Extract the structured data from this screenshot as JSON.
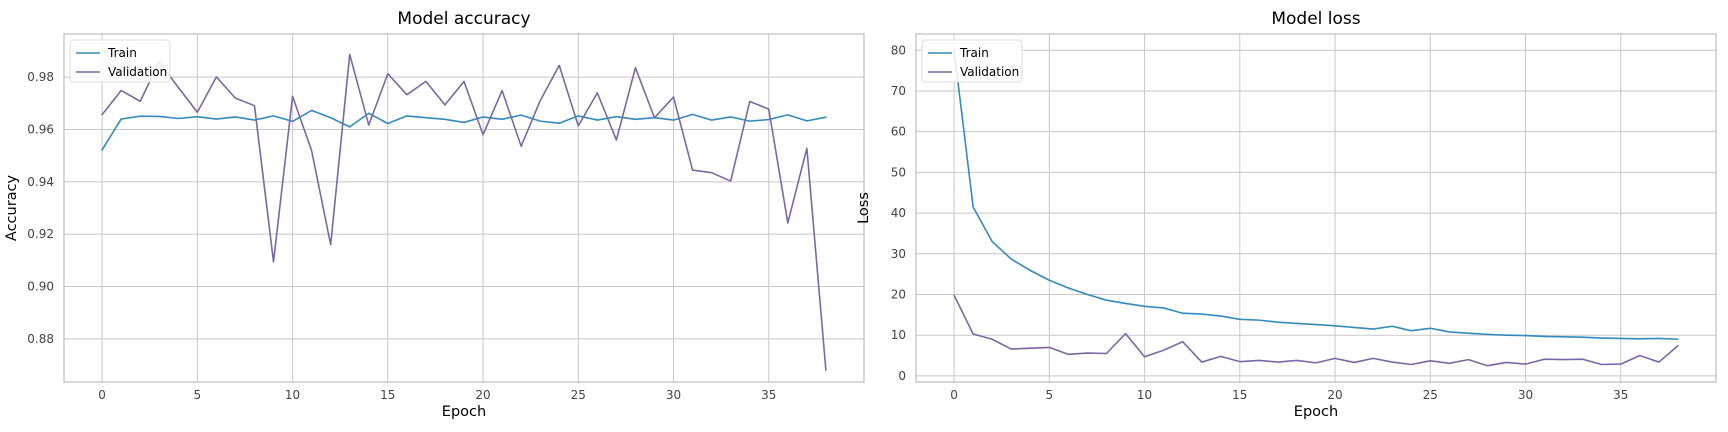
{
  "chart_data": [
    {
      "type": "line",
      "title": "Model accuracy",
      "xlabel": "Epoch",
      "ylabel": "Accuracy",
      "xlim": [
        -2,
        40
      ],
      "ylim": [
        0.8635,
        0.9965
      ],
      "xticks": [
        0,
        5,
        10,
        15,
        20,
        25,
        30,
        35
      ],
      "yticks": [
        0.88,
        0.9,
        0.92,
        0.94,
        0.96,
        0.98
      ],
      "ytick_labels": [
        "0.88",
        "0.90",
        "0.92",
        "0.94",
        "0.96",
        "0.98"
      ],
      "grid": true,
      "legend_position": "top-left",
      "x": [
        0,
        1,
        2,
        3,
        4,
        5,
        6,
        7,
        8,
        9,
        10,
        11,
        12,
        13,
        14,
        15,
        16,
        17,
        18,
        19,
        20,
        21,
        22,
        23,
        24,
        25,
        26,
        27,
        28,
        29,
        30,
        31,
        32,
        33,
        34,
        35,
        36,
        37,
        38
      ],
      "series": [
        {
          "name": "Train",
          "color": "#348ABD",
          "values": [
            0.9522,
            0.964,
            0.9651,
            0.965,
            0.9642,
            0.9649,
            0.964,
            0.9648,
            0.9636,
            0.9652,
            0.9631,
            0.9673,
            0.9645,
            0.961,
            0.9662,
            0.9623,
            0.9652,
            0.9645,
            0.9639,
            0.9627,
            0.9648,
            0.9639,
            0.9655,
            0.9632,
            0.9624,
            0.9652,
            0.9636,
            0.9649,
            0.9639,
            0.9645,
            0.9636,
            0.9658,
            0.9636,
            0.9648,
            0.9632,
            0.9638,
            0.9656,
            0.9633,
            0.9647
          ]
        },
        {
          "name": "Validation",
          "color": "#7A68A6",
          "values": [
            0.9657,
            0.9749,
            0.9708,
            0.9858,
            0.9761,
            0.9666,
            0.9801,
            0.972,
            0.9691,
            0.9094,
            0.9727,
            0.9519,
            0.916,
            0.9887,
            0.9617,
            0.9813,
            0.9733,
            0.9784,
            0.9694,
            0.9784,
            0.958,
            0.9749,
            0.9536,
            0.971,
            0.9845,
            0.9614,
            0.974,
            0.956,
            0.9836,
            0.9645,
            0.9724,
            0.9445,
            0.9435,
            0.9403,
            0.9707,
            0.9678,
            0.9243,
            0.9528,
            0.868
          ]
        }
      ]
    },
    {
      "type": "line",
      "title": "Model loss",
      "xlabel": "Epoch",
      "ylabel": "Loss",
      "xlim": [
        -2,
        40
      ],
      "ylim": [
        -1.5,
        84
      ],
      "xticks": [
        0,
        5,
        10,
        15,
        20,
        25,
        30,
        35
      ],
      "yticks": [
        0,
        10,
        20,
        30,
        40,
        50,
        60,
        70,
        80
      ],
      "ytick_labels": [
        "0",
        "10",
        "20",
        "30",
        "40",
        "50",
        "60",
        "70",
        "80"
      ],
      "grid": true,
      "legend_position": "top-left",
      "x": [
        0,
        1,
        2,
        3,
        4,
        5,
        6,
        7,
        8,
        9,
        10,
        11,
        12,
        13,
        14,
        15,
        16,
        17,
        18,
        19,
        20,
        21,
        22,
        23,
        24,
        25,
        26,
        27,
        28,
        29,
        30,
        31,
        32,
        33,
        34,
        35,
        36,
        37,
        38
      ],
      "series": [
        {
          "name": "Train",
          "color": "#348ABD",
          "values": [
            80.0,
            41.5,
            33.0,
            28.7,
            25.9,
            23.5,
            21.6,
            20.0,
            18.6,
            17.8,
            17.1,
            16.7,
            15.4,
            15.2,
            14.7,
            13.9,
            13.7,
            13.2,
            12.9,
            12.6,
            12.3,
            11.9,
            11.5,
            12.2,
            11.1,
            11.7,
            10.8,
            10.5,
            10.2,
            10.0,
            9.9,
            9.7,
            9.6,
            9.5,
            9.3,
            9.2,
            9.1,
            9.2,
            9.0
          ]
        },
        {
          "name": "Validation",
          "color": "#7A68A6",
          "values": [
            19.8,
            10.3,
            9.0,
            6.6,
            6.8,
            7.0,
            5.3,
            5.6,
            5.5,
            10.4,
            4.7,
            6.3,
            8.4,
            3.4,
            4.8,
            3.5,
            3.8,
            3.4,
            3.8,
            3.2,
            4.3,
            3.3,
            4.3,
            3.4,
            2.8,
            3.7,
            3.1,
            4.0,
            2.5,
            3.3,
            2.9,
            4.1,
            4.0,
            4.1,
            2.8,
            2.9,
            5.0,
            3.4,
            7.4
          ]
        }
      ]
    }
  ]
}
